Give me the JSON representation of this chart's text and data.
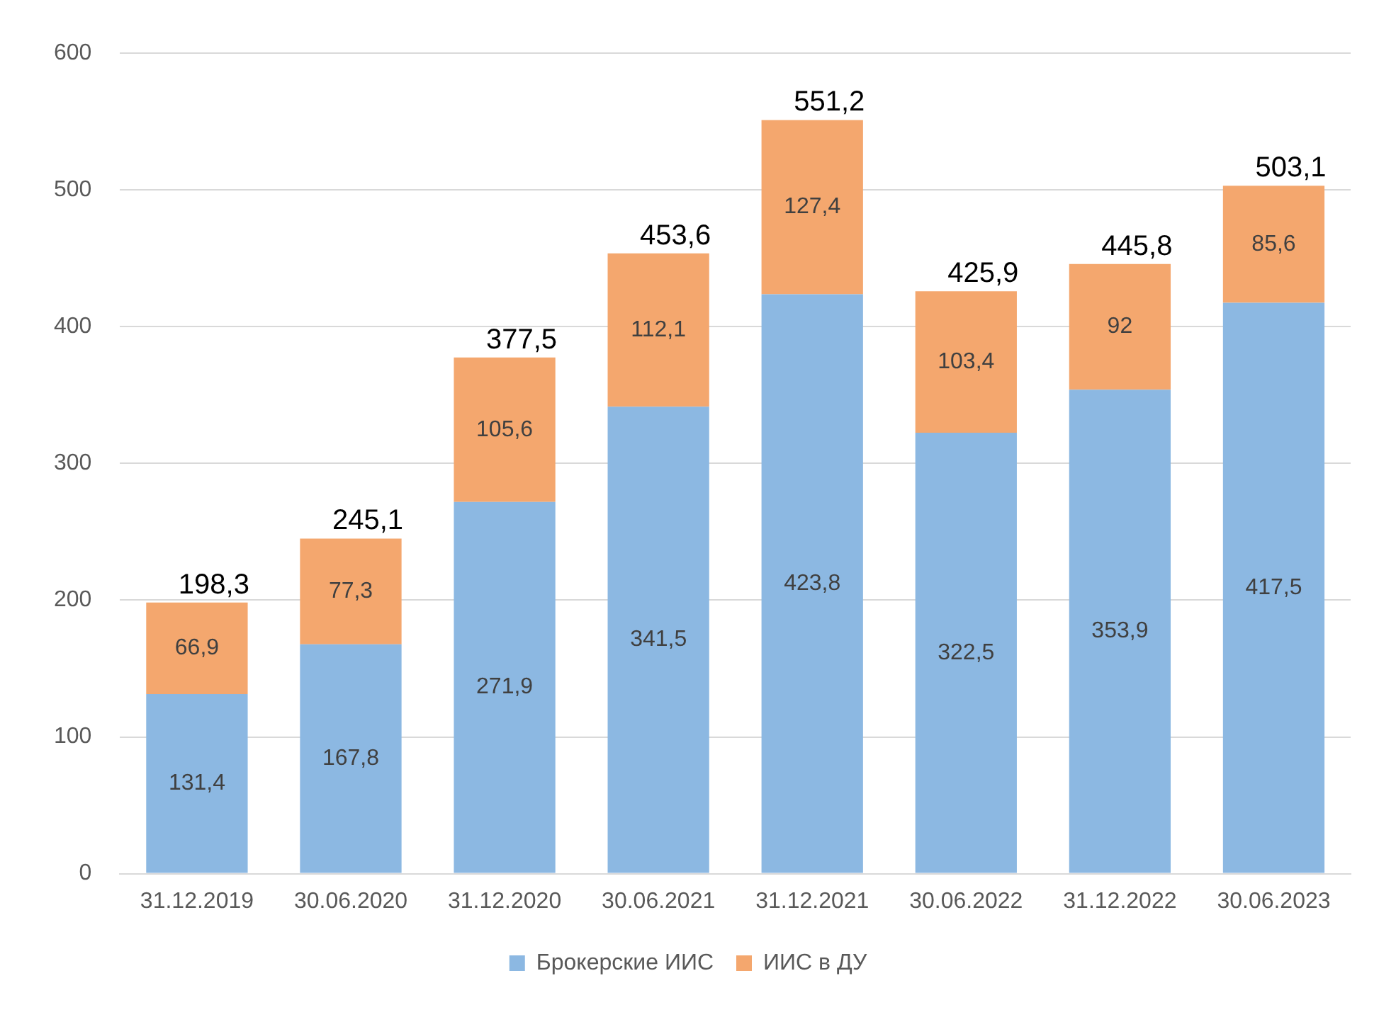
{
  "chart_data": {
    "type": "bar",
    "stacked": true,
    "categories": [
      "31.12.2019",
      "30.06.2020",
      "31.12.2020",
      "30.06.2021",
      "31.12.2021",
      "30.06.2022",
      "31.12.2022",
      "30.06.2023"
    ],
    "series": [
      {
        "name": "Брокерские ИИС",
        "color": "#8cb8e2",
        "values": [
          131.4,
          167.8,
          271.9,
          341.5,
          423.8,
          322.5,
          353.9,
          417.5
        ],
        "value_labels": [
          "131,4",
          "167,8",
          "271,9",
          "341,5",
          "423,8",
          "322,5",
          "353,9",
          "417,5"
        ]
      },
      {
        "name": "ИИС в ДУ",
        "color": "#f4a76e",
        "values": [
          66.9,
          77.3,
          105.6,
          112.1,
          127.4,
          103.4,
          92,
          85.6
        ],
        "value_labels": [
          "66,9",
          "77,3",
          "105,6",
          "112,1",
          "127,4",
          "103,4",
          "92",
          "85,6"
        ]
      }
    ],
    "totals": [
      "198,3",
      "245,1",
      "377,5",
      "453,6",
      "551,2",
      "425,9",
      "445,8",
      "503,1"
    ],
    "ylim": [
      0,
      600
    ],
    "yticks": [
      0,
      100,
      200,
      300,
      400,
      500,
      600
    ],
    "grid": "y",
    "legend": "bottom"
  }
}
